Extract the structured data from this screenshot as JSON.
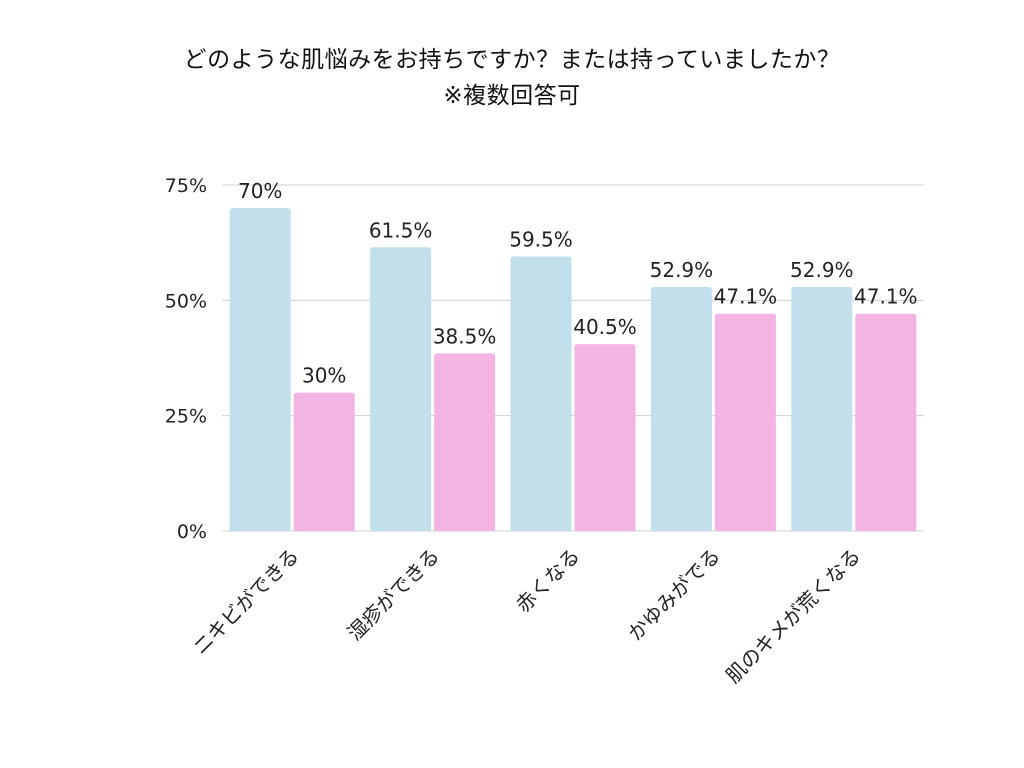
{
  "chart_data": {
    "type": "bar",
    "title": "どのような肌悩みをお持ちですか？または持っていましたか？",
    "subtitle": "※複数回答可",
    "categories": [
      "ニキビができる",
      "湿疹ができる",
      "赤くなる",
      "かゆみがでる",
      "肌のキメが荒くなる"
    ],
    "series": [
      {
        "values": [
          70,
          61.5,
          59.5,
          52.9,
          52.9
        ],
        "labels": [
          "70%",
          "61.5%",
          "59.5%",
          "52.9%",
          "52.9%"
        ],
        "color": "#c2e0ec"
      },
      {
        "values": [
          30,
          38.5,
          40.5,
          47.1,
          47.1
        ],
        "labels": [
          "30%",
          "38.5%",
          "40.5%",
          "47.1%",
          "47.1%"
        ],
        "color": "#f3b4e3"
      }
    ],
    "ylim": [
      0,
      75
    ],
    "yticks": [
      {
        "value": 0,
        "label": "0%"
      },
      {
        "value": 25,
        "label": "25%"
      },
      {
        "value": 50,
        "label": "50%"
      },
      {
        "value": 75,
        "label": "75%"
      }
    ],
    "grid": true,
    "gridColor": "#d0d0d0"
  }
}
